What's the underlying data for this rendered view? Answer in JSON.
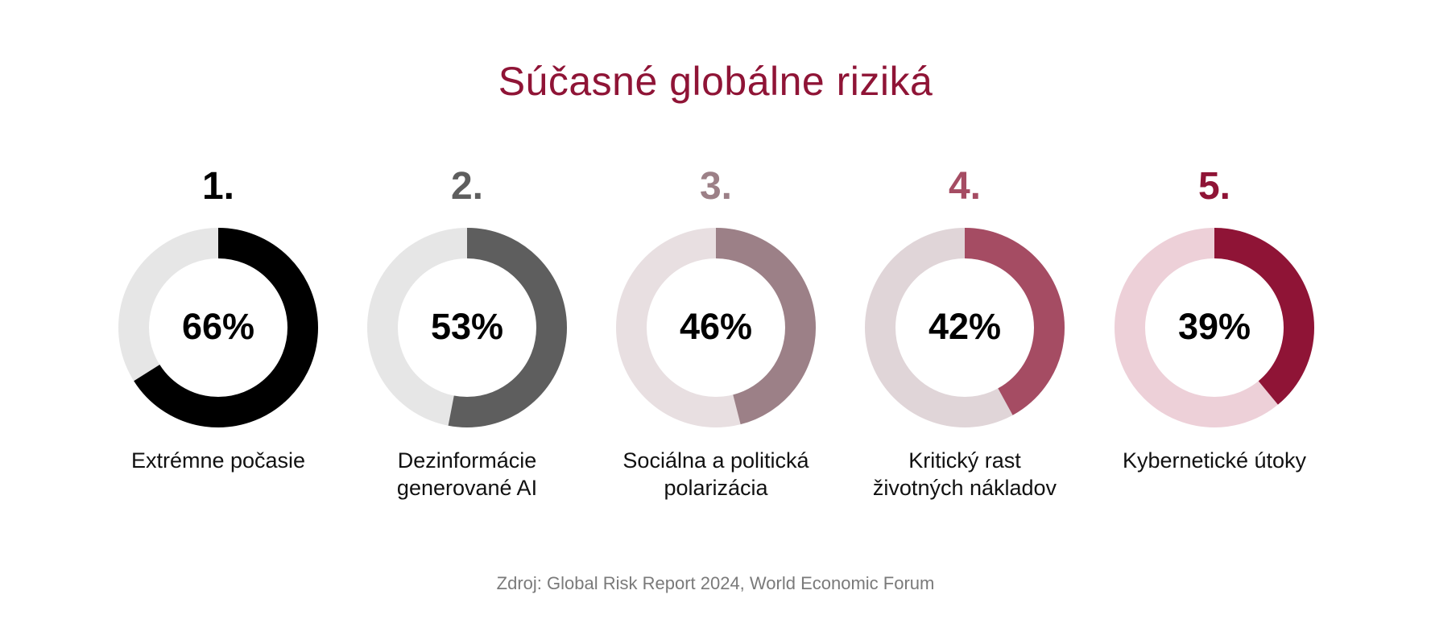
{
  "chart_data": {
    "type": "donut",
    "title": "Súčasné globálne riziká",
    "source": "Zdroj: Global Risk Report 2024, World Economic Forum",
    "items": [
      {
        "rank": "1.",
        "value": 66,
        "value_label": "66%",
        "label_lines": [
          "Extrémne počasie"
        ],
        "color": "#000000",
        "track_color": "#e6e6e6"
      },
      {
        "rank": "2.",
        "value": 53,
        "value_label": "53%",
        "label_lines": [
          "Dezinformácie",
          "generované AI"
        ],
        "color": "#5e5e5e",
        "track_color": "#e6e6e6"
      },
      {
        "rank": "3.",
        "value": 46,
        "value_label": "46%",
        "label_lines": [
          "Sociálna a politická",
          "polarizácia"
        ],
        "color": "#9c8087",
        "track_color": "#e8dfe1"
      },
      {
        "rank": "4.",
        "value": 42,
        "value_label": "42%",
        "label_lines": [
          "Kritický rast",
          "životných nákladov"
        ],
        "color": "#a54c63",
        "track_color": "#e0d5d8"
      },
      {
        "rank": "5.",
        "value": 39,
        "value_label": "39%",
        "label_lines": [
          "Kybernetické útoky"
        ],
        "color": "#8f1436",
        "track_color": "#edd0d8"
      }
    ]
  },
  "colors": {
    "title": "#8f1436",
    "source": "#7a7a7a"
  }
}
